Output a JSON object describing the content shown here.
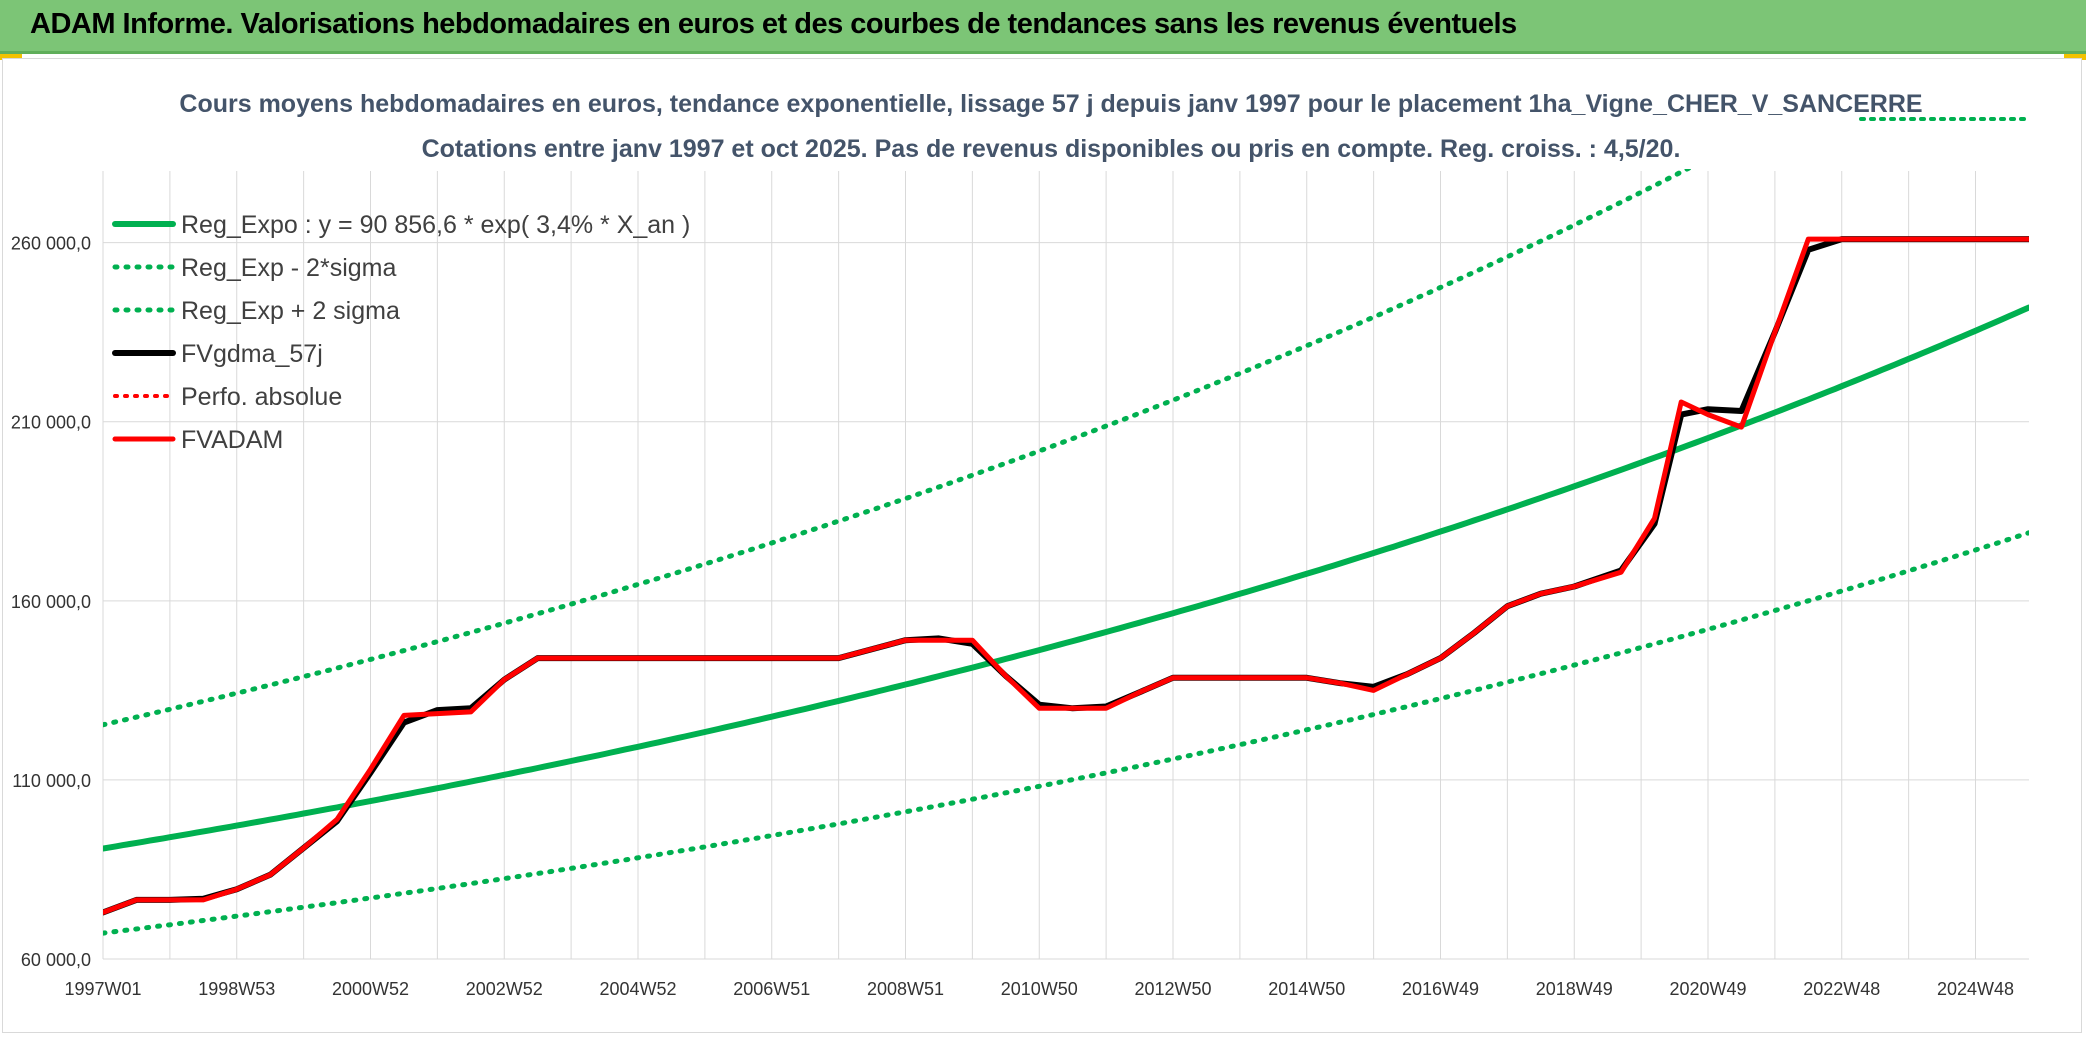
{
  "header": {
    "title": "ADAM Informe. Valorisations hebdomadaires en euros et des courbes de tendances sans les revenus éventuels"
  },
  "colors": {
    "banner": "#7cc576",
    "reg_green": "#00b050",
    "fv_black": "#000000",
    "adam_red": "#ff0000",
    "grid": "#d9d9d9"
  },
  "chart_data": {
    "type": "line",
    "title_line1": "Cours moyens hebdomadaires en euros, tendance exponentielle, lissage 57 j depuis janv 1997 pour le placement 1ha_Vigne_CHER_V_SANCERRE",
    "title_line2": "Cotations entre janv 1997 et oct 2025. Pas de revenus disponibles ou pris en compte. Reg. croiss. : 4,5/20.",
    "xlabel": "",
    "ylabel": "",
    "x_range": [
      1997.0,
      2025.8
    ],
    "ylim": [
      60000,
      280000
    ],
    "y_ticks": [
      60000,
      110000,
      160000,
      210000,
      260000
    ],
    "y_tick_labels": [
      "60 000,0",
      "110 000,0",
      "160 000,0",
      "210 000,0",
      "260 000,0"
    ],
    "x_ticks": [
      {
        "x": 1997.0,
        "label": "1997W01"
      },
      {
        "x": 1999.0,
        "label": "1998W53"
      },
      {
        "x": 2001.0,
        "label": "2000W52"
      },
      {
        "x": 2003.0,
        "label": "2002W52"
      },
      {
        "x": 2005.0,
        "label": "2004W52"
      },
      {
        "x": 2007.0,
        "label": "2006W51"
      },
      {
        "x": 2009.0,
        "label": "2008W51"
      },
      {
        "x": 2011.0,
        "label": "2010W50"
      },
      {
        "x": 2013.0,
        "label": "2012W50"
      },
      {
        "x": 2015.0,
        "label": "2014W50"
      },
      {
        "x": 2017.0,
        "label": "2016W49"
      },
      {
        "x": 2019.0,
        "label": "2018W49"
      },
      {
        "x": 2021.0,
        "label": "2020W49"
      },
      {
        "x": 2023.0,
        "label": "2022W48"
      },
      {
        "x": 2025.0,
        "label": "2024W48"
      }
    ],
    "minor_grid_step": 1,
    "legend": [
      {
        "key": "reg_expo",
        "label": "Reg_Expo : y = 90 856,6 * exp( 3,4% *  X_an )"
      },
      {
        "key": "reg_minus",
        "label": "Reg_Exp - 2*sigma"
      },
      {
        "key": "reg_plus",
        "label": "Reg_Exp + 2 sigma"
      },
      {
        "key": "fvgdma",
        "label": "FVgdma_57j"
      },
      {
        "key": "perfo",
        "label": "Perfo. absolue"
      },
      {
        "key": "fvadam",
        "label": "FVADAM"
      }
    ],
    "series": [
      {
        "key": "reg_expo",
        "name": "Reg_Expo",
        "style": "solid-green",
        "formula": "exp",
        "a": 90856.6,
        "b": 0.034,
        "x0": 1997.0,
        "factor": 1.0
      },
      {
        "key": "reg_minus",
        "name": "Reg_Exp - 2*sigma",
        "style": "dotted-green",
        "formula": "exp",
        "a": 90856.6,
        "b": 0.034,
        "x0": 1997.0,
        "factor": 0.74
      },
      {
        "key": "reg_plus",
        "name": "Reg_Exp + 2 sigma",
        "style": "dotted-green",
        "formula": "exp",
        "a": 90856.6,
        "b": 0.034,
        "x0": 1997.0,
        "factor": 1.38
      },
      {
        "key": "fvgdma",
        "name": "FVgdma_57j",
        "style": "solid-black",
        "x": [
          1997.0,
          1997.5,
          1998.0,
          1998.5,
          1999.0,
          1999.5,
          2000.0,
          2000.5,
          2001.0,
          2001.5,
          2002.0,
          2002.5,
          2003.0,
          2003.5,
          2004.0,
          2006.0,
          2008.0,
          2009.0,
          2009.5,
          2010.0,
          2010.5,
          2011.0,
          2011.5,
          2012.0,
          2012.5,
          2013.0,
          2014.0,
          2015.0,
          2015.5,
          2016.0,
          2016.5,
          2017.0,
          2017.5,
          2018.0,
          2018.5,
          2019.0,
          2019.7,
          2020.2,
          2020.6,
          2021.0,
          2021.5,
          2022.0,
          2022.5,
          2023.0,
          2024.0,
          2025.0,
          2025.8
        ],
        "y": [
          73000,
          76500,
          76500,
          76800,
          79500,
          83500,
          91000,
          98500,
          112000,
          126000,
          129500,
          130000,
          138000,
          144000,
          144000,
          144000,
          144000,
          149000,
          149500,
          148000,
          139000,
          131000,
          130000,
          130500,
          134500,
          138500,
          138500,
          138500,
          137000,
          136000,
          139500,
          144000,
          151000,
          158500,
          162000,
          164000,
          168500,
          181500,
          212000,
          213500,
          213000,
          235000,
          258000,
          261000,
          261000,
          261000,
          261000
        ]
      },
      {
        "key": "fvadam",
        "name": "FVADAM",
        "style": "solid-red",
        "x": [
          1997.0,
          1997.5,
          1998.0,
          1998.5,
          1999.0,
          1999.5,
          2000.0,
          2000.5,
          2001.0,
          2001.5,
          2002.0,
          2002.5,
          2003.0,
          2003.5,
          2004.0,
          2006.0,
          2008.0,
          2009.0,
          2009.5,
          2010.0,
          2010.5,
          2011.0,
          2011.5,
          2012.0,
          2012.5,
          2013.0,
          2014.0,
          2015.0,
          2015.5,
          2016.0,
          2016.5,
          2017.0,
          2017.5,
          2018.0,
          2018.5,
          2019.0,
          2019.7,
          2020.2,
          2020.6,
          2021.0,
          2021.5,
          2022.0,
          2022.5,
          2023.0,
          2024.0,
          2025.0,
          2025.8
        ],
        "y": [
          73000,
          76500,
          76500,
          76500,
          79500,
          83500,
          91000,
          99000,
          113000,
          128000,
          128500,
          129000,
          138000,
          144000,
          144000,
          144000,
          144000,
          149000,
          149000,
          149000,
          139000,
          130000,
          130000,
          130000,
          134500,
          138500,
          138500,
          138500,
          137000,
          135000,
          139500,
          144000,
          151000,
          158500,
          162000,
          164000,
          168000,
          183000,
          215500,
          212000,
          208500,
          235000,
          261000,
          261000,
          261000,
          261000,
          261000
        ]
      }
    ]
  }
}
